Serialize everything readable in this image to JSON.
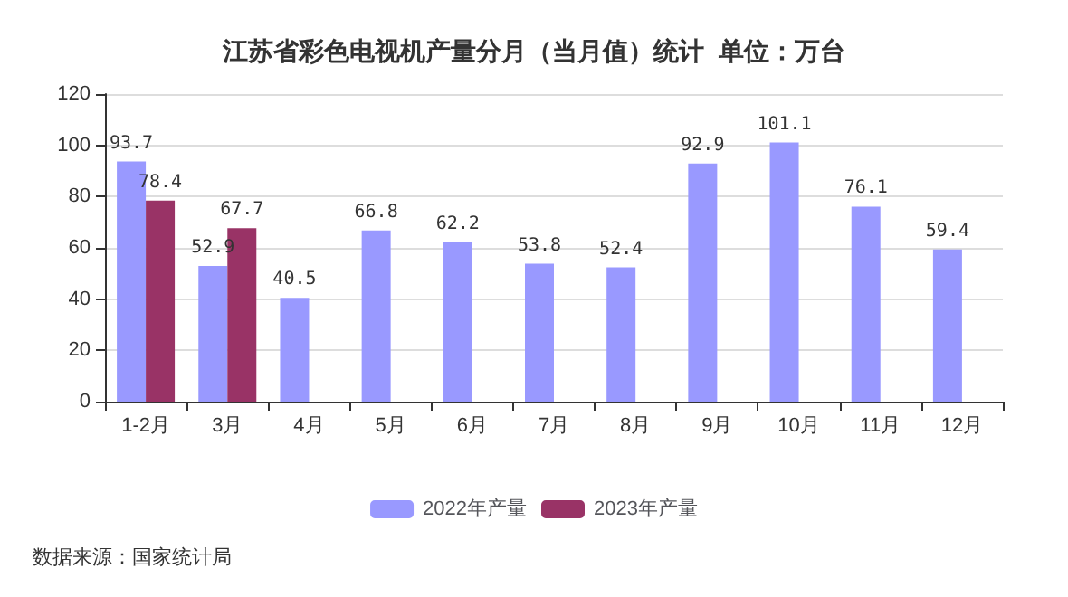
{
  "chart_data": {
    "type": "bar",
    "title": "江苏省彩色电视机产量分月（当月值）统计  单位：万台",
    "categories": [
      "1-2月",
      "3月",
      "4月",
      "5月",
      "6月",
      "7月",
      "8月",
      "9月",
      "10月",
      "11月",
      "12月"
    ],
    "series": [
      {
        "name": "2022年产量",
        "color": "#9999ff",
        "values": [
          93.7,
          52.9,
          40.5,
          66.8,
          62.2,
          53.8,
          52.4,
          92.9,
          101.1,
          76.1,
          59.4
        ]
      },
      {
        "name": "2023年产量",
        "color": "#993366",
        "values": [
          78.4,
          67.7,
          null,
          null,
          null,
          null,
          null,
          null,
          null,
          null,
          null
        ]
      }
    ],
    "ylim": [
      0,
      120
    ],
    "yticks": [
      0,
      20,
      40,
      60,
      80,
      100,
      120
    ],
    "grid": "y",
    "legend": "bottom",
    "data_labels": true,
    "annotations": [
      "数据来源：国家统计局"
    ]
  }
}
